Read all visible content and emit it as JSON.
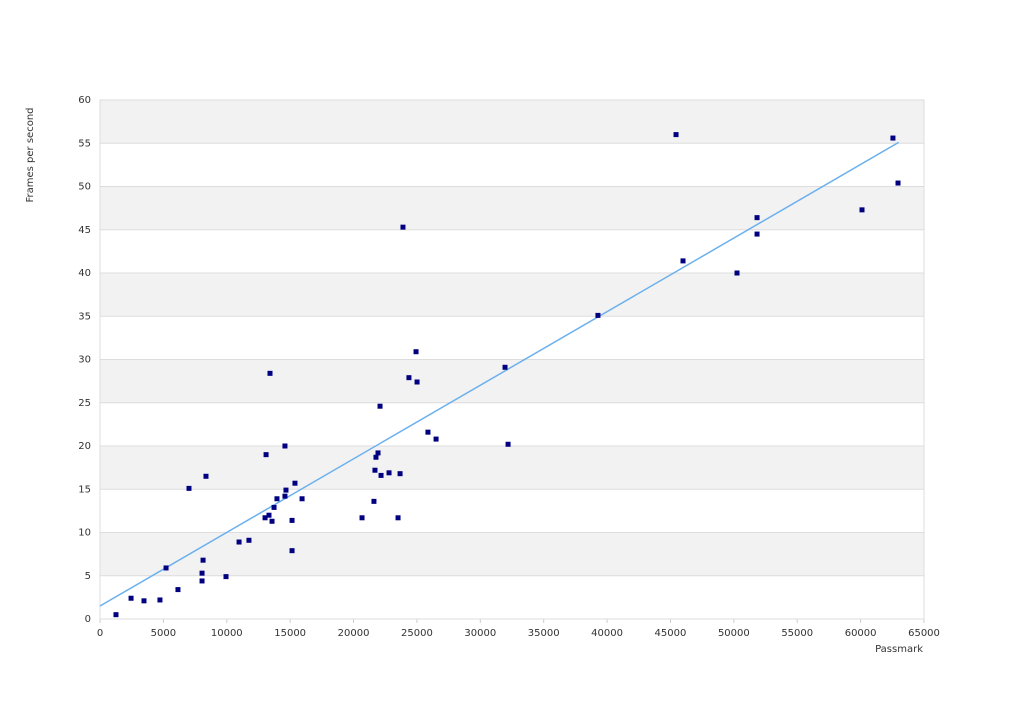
{
  "chart_data": {
    "type": "scatter",
    "x_label": "Passmark",
    "y_label": "Frames per second",
    "xlim": [
      0,
      65000
    ],
    "ylim": [
      0,
      60
    ],
    "xticks": [
      0,
      5000,
      10000,
      15000,
      20000,
      25000,
      30000,
      35000,
      40000,
      45000,
      50000,
      55000,
      60000,
      65000
    ],
    "yticks": [
      0,
      5,
      10,
      15,
      20,
      25,
      30,
      35,
      40,
      45,
      50,
      55,
      60
    ],
    "grid": true,
    "series": [
      {
        "color": "#000080",
        "x": [
          1260,
          2450,
          3470,
          4730,
          5210,
          6150,
          7020,
          8050,
          8050,
          8130,
          8360,
          9940,
          10970,
          11750,
          13020,
          13100,
          13330,
          13410,
          13570,
          13730,
          13960,
          14590,
          14670,
          14590,
          15150,
          15150,
          15380,
          15940,
          20670,
          21610,
          21690,
          21770,
          21930,
          22090,
          22170,
          22800,
          23510,
          23670,
          23900,
          24370,
          24930,
          25010,
          25870,
          26510,
          31950,
          32190,
          39280,
          45440,
          45990,
          50250,
          51830,
          51830,
          60110,
          62550,
          62950
        ],
        "values": [
          0.5,
          2.4,
          2.1,
          2.2,
          5.9,
          3.4,
          15.1,
          5.3,
          4.4,
          6.8,
          16.5,
          4.9,
          8.9,
          9.1,
          11.7,
          19.0,
          12.0,
          28.4,
          11.3,
          12.9,
          13.9,
          20.0,
          14.9,
          14.2,
          11.4,
          7.9,
          15.7,
          13.9,
          11.7,
          13.6,
          17.2,
          18.7,
          19.2,
          24.6,
          16.6,
          16.9,
          11.7,
          16.8,
          45.3,
          27.9,
          30.9,
          27.4,
          21.6,
          20.8,
          29.1,
          20.2,
          35.1,
          56.0,
          41.4,
          40.0,
          46.4,
          44.5,
          47.3,
          55.6,
          50.4
        ]
      }
    ],
    "trendline": {
      "color": "#6cb0ee",
      "x": [
        0,
        63000
      ],
      "values": [
        1.5,
        55.1
      ]
    }
  }
}
